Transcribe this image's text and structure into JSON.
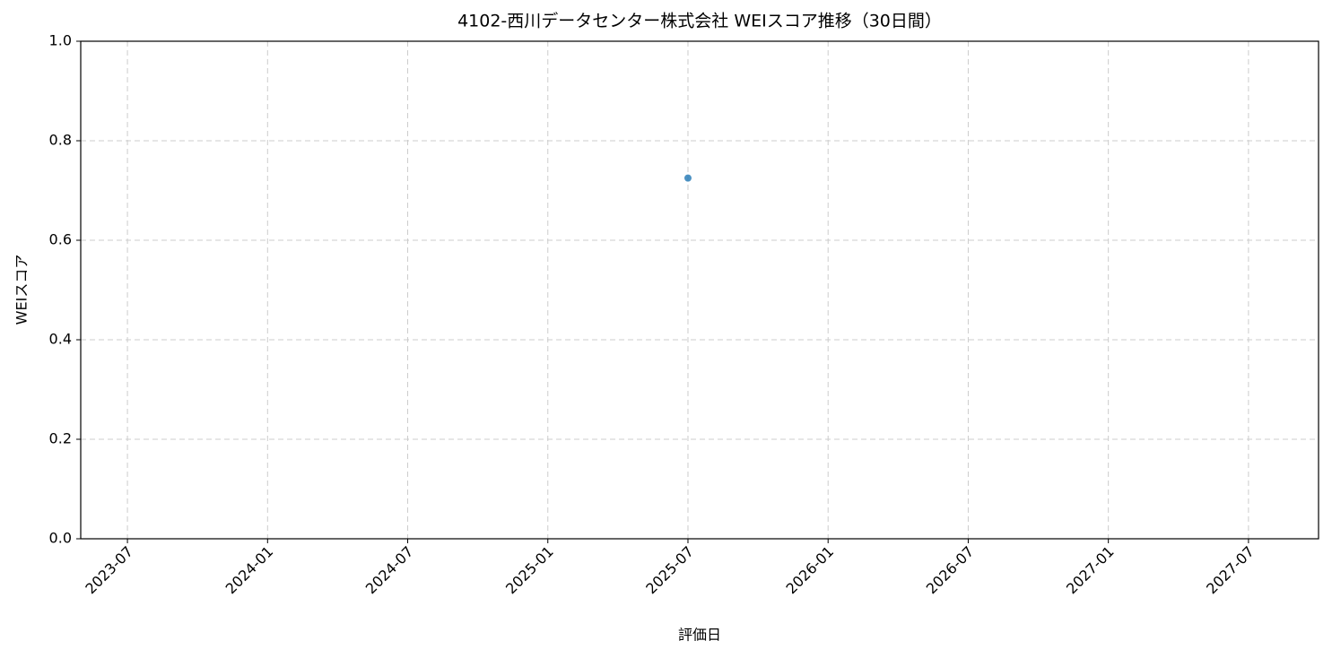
{
  "chart_data": {
    "type": "line",
    "title": "4102-西川データセンター株式会社 WEIスコア推移（30日間）",
    "x_label": "評価日",
    "y_label": "WEIスコア",
    "x": [
      "2025-07"
    ],
    "values": [
      0.725
    ],
    "color": "#1f77b4",
    "xlim": [
      "2023-05",
      "2027-10"
    ],
    "xticks": [
      "2023-07",
      "2024-01",
      "2024-07",
      "2025-01",
      "2025-07",
      "2026-01",
      "2026-07",
      "2027-01",
      "2027-07"
    ],
    "ylim": [
      0,
      1
    ],
    "yticks": [
      {
        "value": 0,
        "label": "0.0"
      },
      0.2,
      0.4,
      0.6,
      0.8,
      {
        "value": 1,
        "label": "1.0"
      }
    ],
    "grid": true
  }
}
